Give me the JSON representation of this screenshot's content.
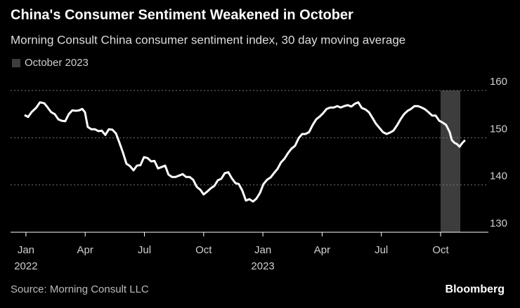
{
  "chart_data": {
    "type": "line",
    "title": "China's Consumer Sentiment Weakened in October",
    "subtitle": "Morning Consult China consumer sentiment index, 30 day moving average",
    "source": "Source: Morning Consult LLC",
    "brand": "Bloomberg",
    "highlight": {
      "label": "October 2023",
      "x": [
        21,
        22
      ],
      "color": "#3d3d3d"
    },
    "color": "#ffffff",
    "x": [
      -0.07,
      0.11,
      0.28,
      0.53,
      0.71,
      0.93,
      1.1,
      1.28,
      1.46,
      1.64,
      1.81,
      1.99,
      2.17,
      2.35,
      2.53,
      2.7,
      2.85,
      2.99,
      3.13,
      3.31,
      3.49,
      3.67,
      3.84,
      4.02,
      4.2,
      4.38,
      4.56,
      4.73,
      4.91,
      5.09,
      5.27,
      5.45,
      5.62,
      5.8,
      5.98,
      6.16,
      6.34,
      6.51,
      6.69,
      6.87,
      7.05,
      7.22,
      7.4,
      7.58,
      7.76,
      7.94,
      8.11,
      8.29,
      8.47,
      8.65,
      8.83,
      9.0,
      9.18,
      9.36,
      9.54,
      9.72,
      9.89,
      10.07,
      10.25,
      10.43,
      10.61,
      10.78,
      10.96,
      11.14,
      11.32,
      11.5,
      11.67,
      11.85,
      12.03,
      12.21,
      12.39,
      12.56,
      12.74,
      12.92,
      13.1,
      13.28,
      13.45,
      13.63,
      13.81,
      13.99,
      14.16,
      14.34,
      14.52,
      14.7,
      14.88,
      15.05,
      15.23,
      15.41,
      15.59,
      15.77,
      15.94,
      16.12,
      16.3,
      16.48,
      16.66,
      16.83,
      17.01,
      17.19,
      17.37,
      17.55,
      17.72,
      17.9,
      18.08,
      18.26,
      18.44,
      18.61,
      18.79,
      18.97,
      19.15,
      19.33,
      19.5,
      19.68,
      19.86,
      20.04,
      20.22,
      20.39,
      20.57,
      20.75,
      20.93,
      21.11,
      21.28,
      21.46,
      21.57,
      21.71,
      21.82,
      21.96,
      22.1,
      22.24
    ],
    "values": [
      154.8,
      154.4,
      155.4,
      156.4,
      157.5,
      157.3,
      156.4,
      155.4,
      155.0,
      153.9,
      153.6,
      153.5,
      155.0,
      155.8,
      155.7,
      155.8,
      156.1,
      155.4,
      152.3,
      151.8,
      151.8,
      151.4,
      151.5,
      150.6,
      151.8,
      151.7,
      150.9,
      149.0,
      146.9,
      144.5,
      144.0,
      143.1,
      144.1,
      144.2,
      145.9,
      145.7,
      145.0,
      145.1,
      143.5,
      143.8,
      144.1,
      142.2,
      141.7,
      141.7,
      142.0,
      142.3,
      141.7,
      141.7,
      141.1,
      139.6,
      139.0,
      138.0,
      138.6,
      139.3,
      139.8,
      141.0,
      141.3,
      142.5,
      142.7,
      141.4,
      140.4,
      140.2,
      138.8,
      136.7,
      137.0,
      136.5,
      137.1,
      138.3,
      140.2,
      141.1,
      141.6,
      142.5,
      143.4,
      144.8,
      145.6,
      146.8,
      147.7,
      148.3,
      149.9,
      150.8,
      150.8,
      151.2,
      152.7,
      153.9,
      154.5,
      155.2,
      156.1,
      156.4,
      156.4,
      156.7,
      156.4,
      156.7,
      156.9,
      156.6,
      157.2,
      157.5,
      156.3,
      156.0,
      155.4,
      154.2,
      153.0,
      152.1,
      151.2,
      150.8,
      151.1,
      151.5,
      152.6,
      153.9,
      155.0,
      155.7,
      156.1,
      156.7,
      156.7,
      156.4,
      156.0,
      155.4,
      154.7,
      154.7,
      153.6,
      153.2,
      152.7,
      151.2,
      149.5,
      148.9,
      148.7,
      148.1,
      148.9,
      149.5
    ],
    "xlim": [
      -0.78,
      23.42
    ],
    "xticks": [
      {
        "value": 0,
        "label": "Jan"
      },
      {
        "value": 3,
        "label": "Apr"
      },
      {
        "value": 6,
        "label": "Jul"
      },
      {
        "value": 9,
        "label": "Oct"
      },
      {
        "value": 12,
        "label": "Jan"
      },
      {
        "value": 15,
        "label": "Apr"
      },
      {
        "value": 18,
        "label": "Jul"
      },
      {
        "value": 21,
        "label": "Oct"
      }
    ],
    "x_year_labels": [
      {
        "value": 0,
        "label": "2022"
      },
      {
        "value": 12,
        "label": "2023"
      }
    ],
    "ylim": [
      130,
      160
    ],
    "yticks": [
      130,
      140,
      150,
      160
    ],
    "grid": true
  }
}
